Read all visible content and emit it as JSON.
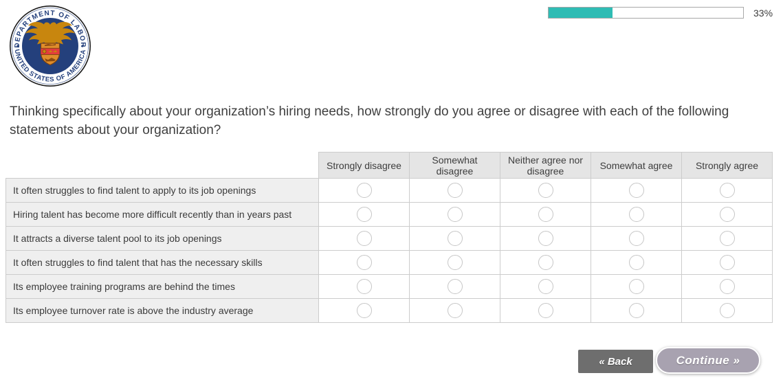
{
  "header": {
    "seal": {
      "top_text": "DEPARTMENT OF LABOR",
      "bottom_text": "UNITED STATES OF AMERICA"
    },
    "progress": {
      "percent": 33,
      "label": "33%"
    }
  },
  "question": "Thinking specifically about your organization’s hiring needs, how strongly do you agree or disagree with each of the following statements about your organization?",
  "matrix": {
    "columns": [
      "Strongly disagree",
      "Somewhat disagree",
      "Neither agree nor disagree",
      "Somewhat agree",
      "Strongly agree"
    ],
    "rows": [
      "It often struggles to find talent to apply to its job openings",
      "Hiring talent has become more difficult recently than in years past",
      "It attracts a diverse talent pool to its job openings",
      "It often struggles to find talent that has the necessary skills",
      "Its employee training programs are behind the times",
      "Its employee turnover rate is above the industry average"
    ],
    "selected": null
  },
  "footer": {
    "back_label": "« Back",
    "continue_label": "Continue »"
  },
  "colors": {
    "progress_fill": "#2fbcb4",
    "back_button_bg": "#6e6e6e",
    "continue_button_bg": "#a8a2b0",
    "seal_blue": "#24407c",
    "seal_gold": "#c8860e",
    "seal_red": "#e23c3c"
  }
}
